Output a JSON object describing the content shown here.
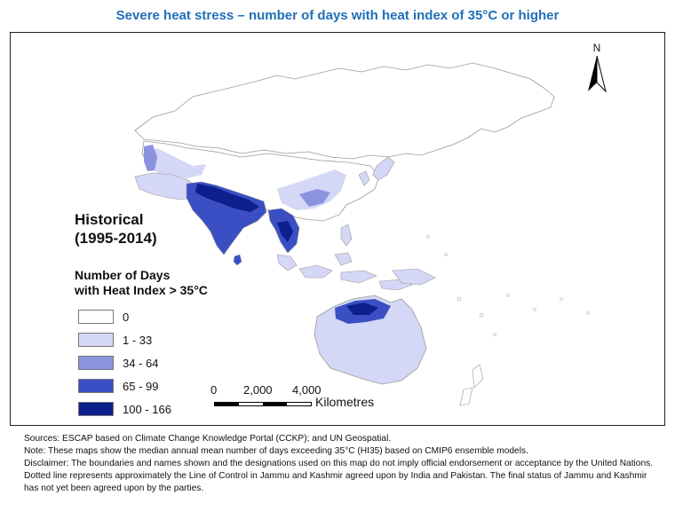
{
  "title": "Severe heat stress – number of days with heat index of 35°C or higher",
  "period": {
    "line1": "Historical",
    "line2": "(1995-2014)"
  },
  "legend": {
    "title_line1": "Number of Days",
    "title_line2": "with Heat Index > 35°C",
    "items": [
      {
        "label": "0",
        "color": "#ffffff"
      },
      {
        "label": "1 - 33",
        "color": "#d4d7f5"
      },
      {
        "label": "34 - 64",
        "color": "#8b93e0"
      },
      {
        "label": "65 - 99",
        "color": "#3a4fc4"
      },
      {
        "label": "100 - 166",
        "color": "#0d1f8c"
      }
    ]
  },
  "scale_bar": {
    "ticks": [
      "0",
      "2,000",
      "4,000"
    ],
    "unit": "Kilometres"
  },
  "north_arrow": {
    "label": "N"
  },
  "notes": [
    "Sources: ESCAP based on Climate Change Knowledge Portal (CCKP); and UN Geospatial.",
    "Note: These maps show the median annual mean number of days exceeding 35°C (HI35) based on CMIP6 ensemble models.",
    "Disclaimer: The boundaries and names shown and the designations used on this map do not imply official endorsement or acceptance by the United Nations. Dotted line represents approximately the Line of Control in Jammu and Kashmir agreed upon by India and Pakistan. The final status of Jammu and Kashmir has not yet been agreed upon by the parties."
  ],
  "colors": {
    "title": "#1f6fb8",
    "outline": "#9a9a9a"
  }
}
